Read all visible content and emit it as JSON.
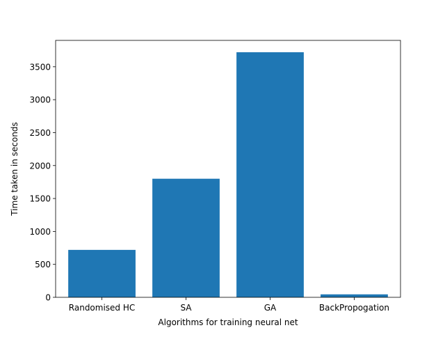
{
  "chart_data": {
    "type": "bar",
    "title": "",
    "xlabel": "Algorithms for training neural net",
    "ylabel": "Time taken in seconds",
    "categories": [
      "Randomised HC",
      "SA",
      "GA",
      "BackPropogation"
    ],
    "values": [
      720,
      1800,
      3720,
      45
    ],
    "ylim": [
      0,
      3900
    ],
    "yticks": [
      0,
      500,
      1000,
      1500,
      2000,
      2500,
      3000,
      3500
    ],
    "grid": false,
    "colors": {
      "bar": "#1f77b4",
      "axis": "#000000",
      "background": "#ffffff"
    }
  }
}
